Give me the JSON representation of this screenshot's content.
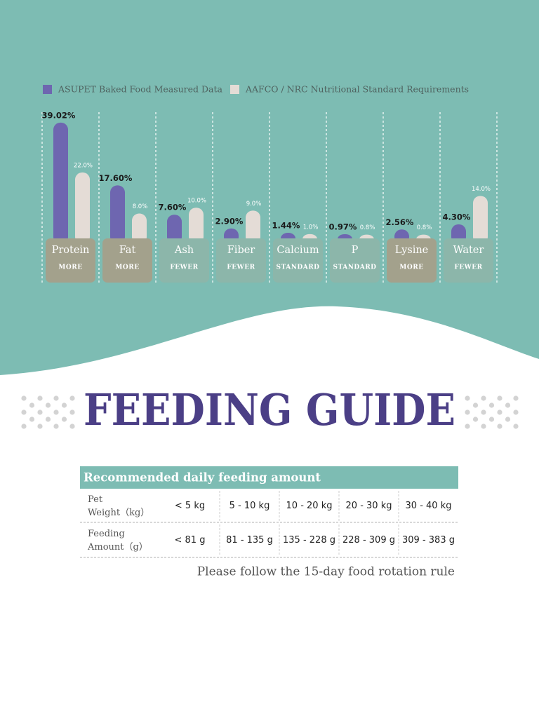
{
  "chart_data": {
    "type": "bar",
    "categories": [
      "Protein",
      "Fat",
      "Ash",
      "Fiber",
      "Calcium",
      "P",
      "Lysine",
      "Water"
    ],
    "category_tags": [
      "MORE",
      "MORE",
      "FEWER",
      "FEWER",
      "STANDARD",
      "STANDARD",
      "MORE",
      "FEWER"
    ],
    "tag_colors": [
      "#a3a18c",
      "#a3a18c",
      "#8cb6aa",
      "#8cb6aa",
      "#8cb6aa",
      "#8cb6aa",
      "#a3a18c",
      "#8cb6aa"
    ],
    "series": [
      {
        "name": "ASUPET Baked Food Measured Data",
        "color": "#6e66b0",
        "values": [
          39.02,
          17.6,
          7.6,
          2.9,
          1.44,
          0.97,
          2.56,
          4.3
        ],
        "value_labels": [
          "39.02%",
          "17.60%",
          "7.60%",
          "2.90%",
          "1.44%",
          "0.97%",
          "2.56%",
          "4.30%"
        ]
      },
      {
        "name": "AAFCO / NRC Nutritional Standard Requirements",
        "color": "#e4dcd6",
        "values": [
          22,
          8,
          10,
          9,
          1,
          0.8,
          0.8,
          14
        ],
        "value_labels": [
          "22.0%",
          "8.0%",
          "10.0%",
          "9.0%",
          "1.0%",
          "0.8%",
          "0.8%",
          "14.0%"
        ]
      }
    ]
  },
  "title": "FEEDING GUIDE",
  "table": {
    "header": "Recommended daily feeding amount",
    "rows": [
      {
        "label": [
          "Pet",
          "Weight（kg）"
        ],
        "cells": [
          "< 5 kg",
          "5 - 10 kg",
          "10 - 20 kg",
          "20 - 30 kg",
          "30 - 40 kg"
        ]
      },
      {
        "label": [
          "Feeding",
          "Amount（g）"
        ],
        "cells": [
          "< 81 g",
          "81 - 135 g",
          "135 - 228 g",
          "228 - 309 g",
          "309 - 383 g"
        ]
      }
    ]
  },
  "note": "Please follow the 15-day food rotation rule"
}
